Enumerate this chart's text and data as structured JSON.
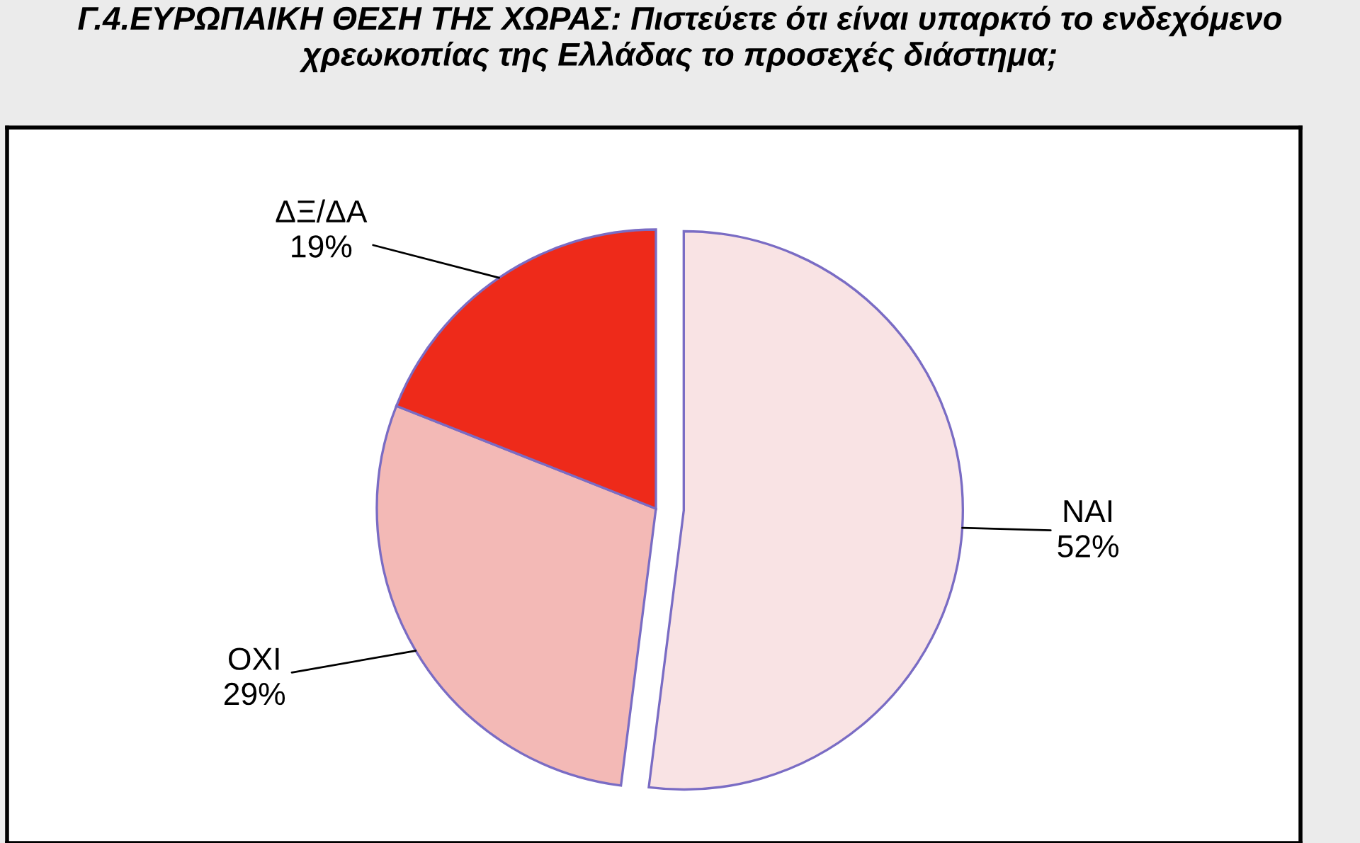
{
  "chart_data": {
    "type": "pie",
    "title": "Γ.4.ΕΥΡΩΠΑΙΚΗ ΘΕΣΗ ΤΗΣ ΧΩΡΑΣ: Πιστεύετε ότι είναι υπαρκτό το ενδεχόμενο χρεωκοπίας της Ελλάδας το προσεχές διάστημα;",
    "categories": [
      "ΝΑΙ",
      "ΟΧΙ",
      "ΔΞ/ΔΑ"
    ],
    "values": [
      52,
      29,
      19
    ],
    "colors": [
      "#f9e3e4",
      "#f3b9b6",
      "#ee2a1a"
    ],
    "value_labels": [
      "52%",
      "29%",
      "19%"
    ]
  }
}
